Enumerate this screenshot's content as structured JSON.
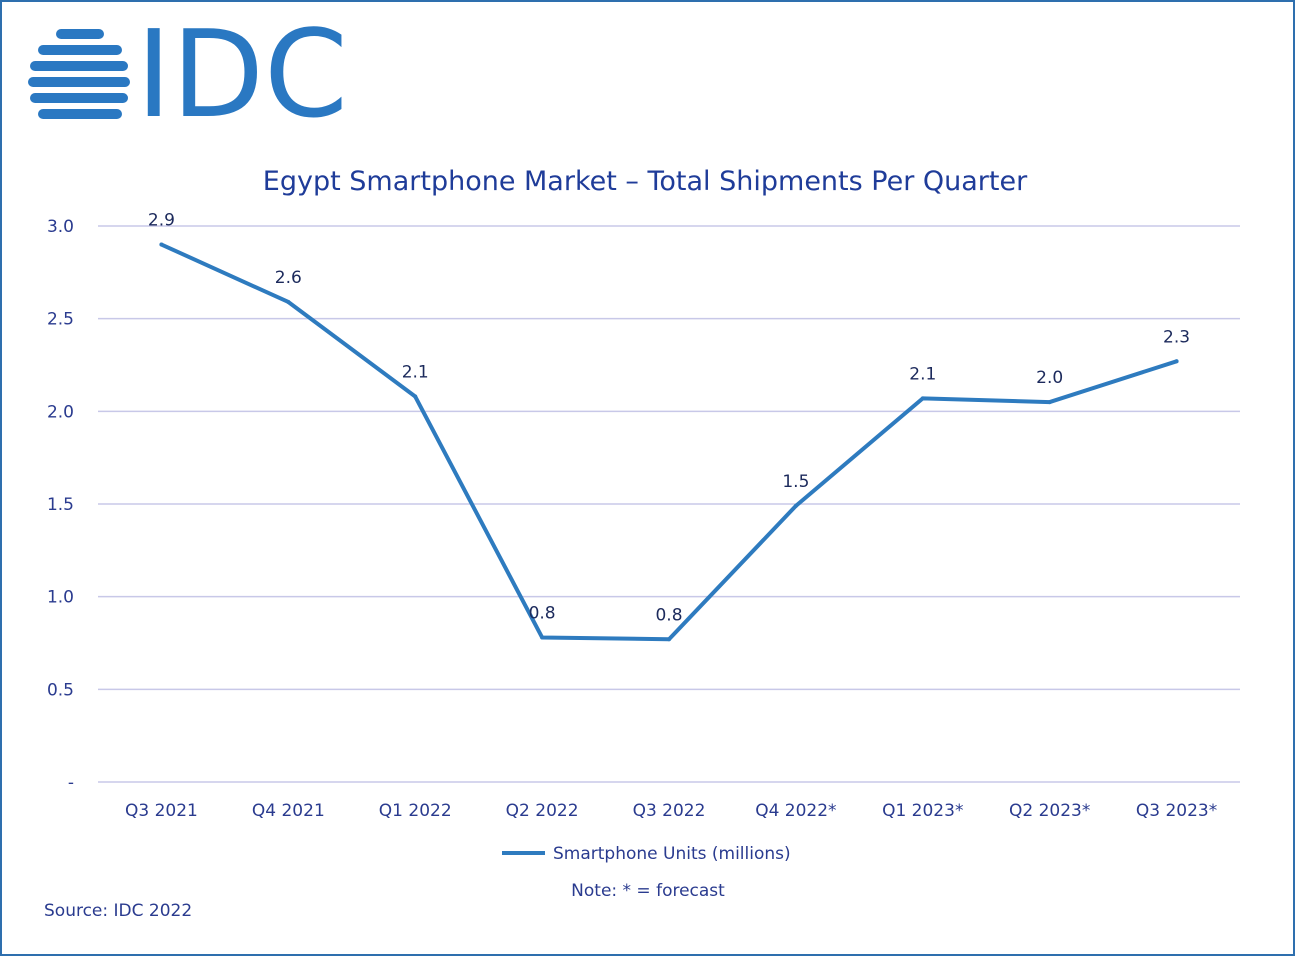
{
  "logo": {
    "text": "IDC",
    "color": "#2a78c2"
  },
  "chart_data": {
    "type": "line",
    "title": "Egypt Smartphone Market – Total Shipments Per Quarter",
    "categories": [
      "Q3 2021",
      "Q4 2021",
      "Q1 2022",
      "Q2 2022",
      "Q3 2022",
      "Q4 2022*",
      "Q1 2023*",
      "Q2 2023*",
      "Q3 2023*"
    ],
    "series": [
      {
        "name": "Smartphone Units (millions)",
        "values": [
          2.9,
          2.59,
          2.08,
          0.78,
          0.77,
          1.49,
          2.07,
          2.05,
          2.27
        ],
        "labels": [
          "2.9",
          "2.6",
          "2.1",
          "0.8",
          "0.8",
          "1.5",
          "2.1",
          "2.0",
          "2.3"
        ],
        "color": "#2e7bbf"
      }
    ],
    "ylim": [
      0,
      3
    ],
    "yticks": [
      0,
      0.5,
      1,
      1.5,
      2,
      2.5,
      3
    ],
    "yticklabels": [
      "-",
      "0.5",
      "1.0",
      "1.5",
      "2.0",
      "2.5",
      "3.0"
    ],
    "grid": true,
    "legend_position": "bottom"
  },
  "note": "Note: * = forecast",
  "source": "Source: IDC 2022"
}
